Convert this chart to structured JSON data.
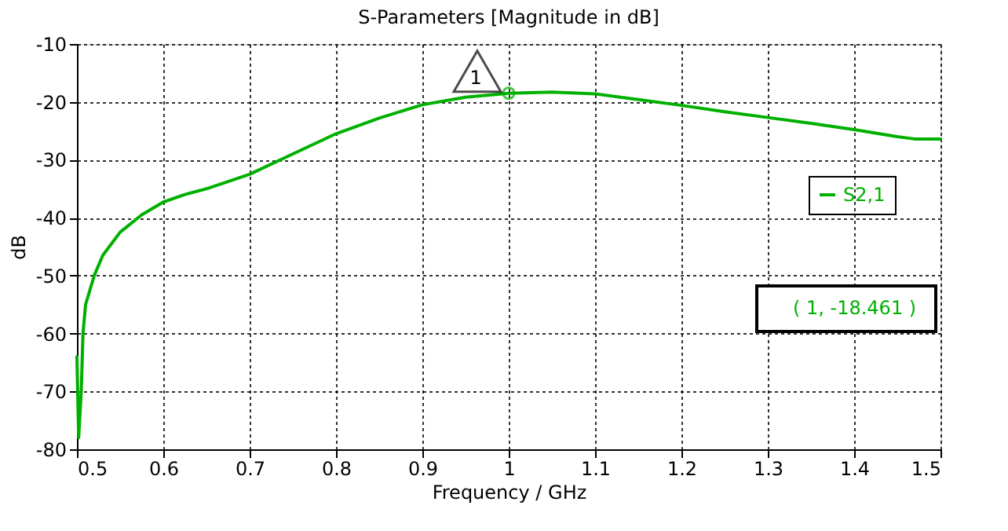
{
  "chart_data": {
    "type": "line",
    "title": "S-Parameters [Magnitude in dB]",
    "xlabel": "Frequency / GHz",
    "ylabel": "dB",
    "xlim": [
      0.5,
      1.5
    ],
    "xticks": [
      0.5,
      0.6,
      0.7,
      0.8,
      0.9,
      1,
      1.1,
      1.2,
      1.3,
      1.4,
      1.5
    ],
    "ylim": [
      -80,
      -10
    ],
    "yticks": [
      -80,
      -70,
      -60,
      -50,
      -40,
      -30,
      -20,
      -10
    ],
    "grid": true,
    "legend": "right",
    "line_style": "solid",
    "marker": "none",
    "series": [
      {
        "name": "S2,1",
        "color": "#00b000",
        "x": [
          0.5,
          0.502,
          0.505,
          0.507,
          0.51,
          0.52,
          0.53,
          0.55,
          0.575,
          0.6,
          0.625,
          0.65,
          0.7,
          0.75,
          0.8,
          0.85,
          0.9,
          0.95,
          1.0,
          1.05,
          1.1,
          1.15,
          1.2,
          1.25,
          1.3,
          1.35,
          1.4,
          1.45,
          1.47,
          1.5
        ],
        "values": [
          -64,
          -78,
          -70,
          -60,
          -55,
          -50,
          -46.5,
          -42.5,
          -39.5,
          -37.3,
          -36,
          -35,
          -32.5,
          -29,
          -25.5,
          -22.8,
          -20.5,
          -19.2,
          -18.5,
          -18.3,
          -18.6,
          -19.6,
          -20.6,
          -21.7,
          -22.7,
          -23.7,
          -24.8,
          -26,
          -26.4,
          -26.4
        ]
      }
    ],
    "annotations": [
      {
        "text": "1",
        "x": 1,
        "y": -18.5
      },
      "( 1, -18.461 )"
    ]
  }
}
